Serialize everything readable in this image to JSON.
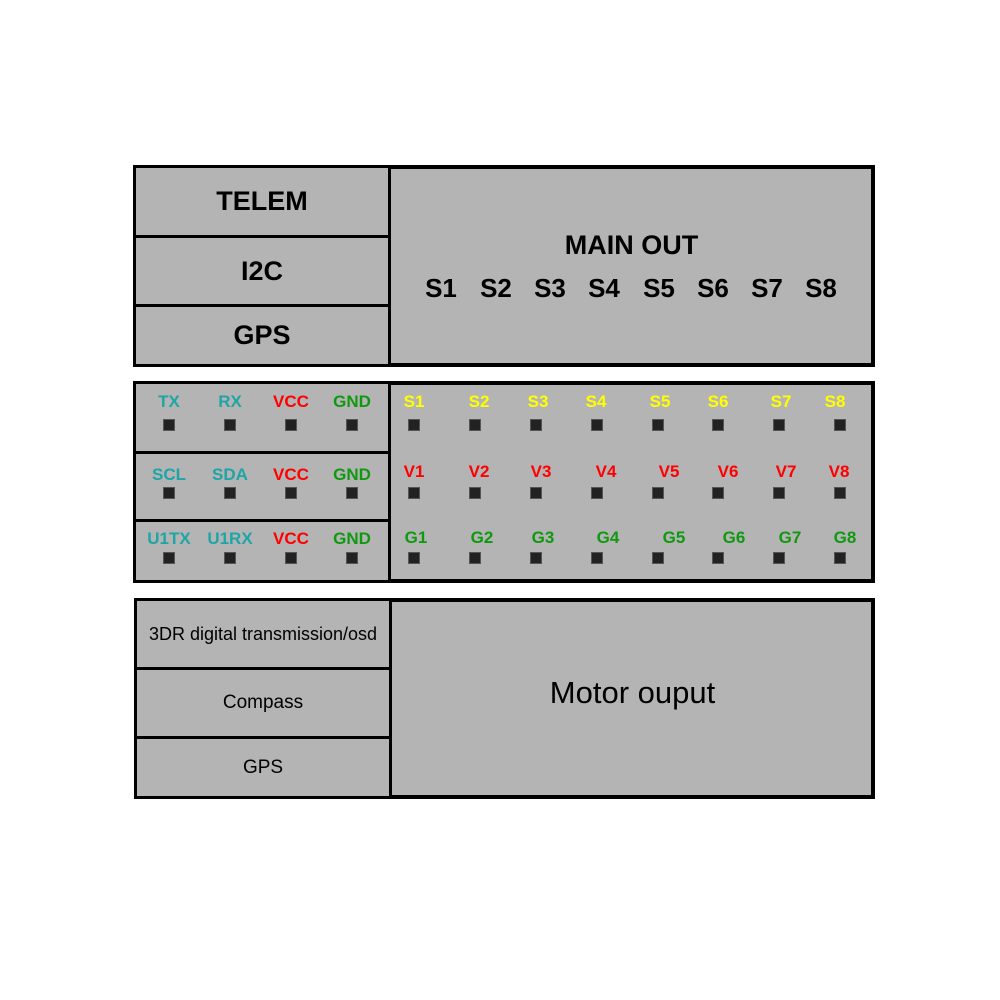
{
  "colors": {
    "fill": "#b4b4b4",
    "border": "#000000",
    "signal": "#1ea5a5",
    "vcc": "#ff0000",
    "gnd": "#109910",
    "servo": "#ffff00",
    "pin": "#222222"
  },
  "top": {
    "left": [
      "TELEM",
      "I2C",
      "GPS"
    ],
    "main_title": "MAIN OUT",
    "outputs": [
      "S1",
      "S2",
      "S3",
      "S4",
      "S5",
      "S6",
      "S7",
      "S8"
    ]
  },
  "pins": {
    "left_rows": [
      [
        {
          "t": "TX",
          "c": "signal"
        },
        {
          "t": "RX",
          "c": "signal"
        },
        {
          "t": "VCC",
          "c": "vcc"
        },
        {
          "t": "GND",
          "c": "gnd"
        }
      ],
      [
        {
          "t": "SCL",
          "c": "signal"
        },
        {
          "t": "SDA",
          "c": "signal"
        },
        {
          "t": "VCC",
          "c": "vcc"
        },
        {
          "t": "GND",
          "c": "gnd"
        }
      ],
      [
        {
          "t": "U1TX",
          "c": "signal"
        },
        {
          "t": "U1RX",
          "c": "signal"
        },
        {
          "t": "VCC",
          "c": "vcc"
        },
        {
          "t": "GND",
          "c": "gnd"
        }
      ]
    ],
    "right_rows": [
      {
        "c": "servo",
        "labels": [
          "S1",
          "S2",
          "S3",
          "S4",
          "S5",
          "S6",
          "S7",
          "S8"
        ]
      },
      {
        "c": "vcc",
        "labels": [
          "V1",
          "V2",
          "V3",
          "V4",
          "V5",
          "V6",
          "V7",
          "V8"
        ]
      },
      {
        "c": "gnd",
        "labels": [
          "G1",
          "G2",
          "G3",
          "G4",
          "G5",
          "G6",
          "G7",
          "G8"
        ]
      }
    ]
  },
  "bottom": {
    "left": [
      "3DR digital transmission/osd",
      "Compass",
      "GPS"
    ],
    "main": "Motor ouput"
  }
}
